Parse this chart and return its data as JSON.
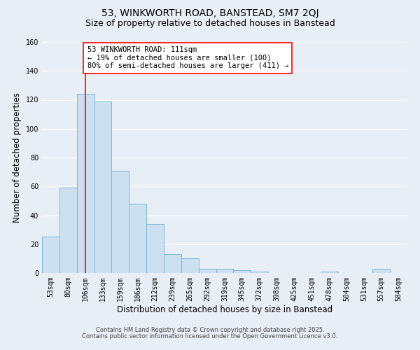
{
  "title": "53, WINKWORTH ROAD, BANSTEAD, SM7 2QJ",
  "subtitle": "Size of property relative to detached houses in Banstead",
  "xlabel": "Distribution of detached houses by size in Banstead",
  "ylabel": "Number of detached properties",
  "bar_labels": [
    "53sqm",
    "80sqm",
    "106sqm",
    "133sqm",
    "159sqm",
    "186sqm",
    "212sqm",
    "239sqm",
    "265sqm",
    "292sqm",
    "319sqm",
    "345sqm",
    "372sqm",
    "398sqm",
    "425sqm",
    "451sqm",
    "478sqm",
    "504sqm",
    "531sqm",
    "557sqm",
    "584sqm"
  ],
  "bar_heights": [
    25,
    59,
    124,
    119,
    71,
    48,
    34,
    13,
    10,
    3,
    3,
    2,
    1,
    0,
    0,
    0,
    1,
    0,
    0,
    3,
    0
  ],
  "bar_color": "#cce0f0",
  "bar_edge_color": "#7ab8d9",
  "ylim": [
    0,
    160
  ],
  "yticks": [
    0,
    20,
    40,
    60,
    80,
    100,
    120,
    140,
    160
  ],
  "red_line_x": 2.0,
  "annotation_line1": "53 WINKWORTH ROAD: 111sqm",
  "annotation_line2": "← 19% of detached houses are smaller (100)",
  "annotation_line3": "80% of semi-detached houses are larger (411) →",
  "footer_line1": "Contains HM Land Registry data © Crown copyright and database right 2025.",
  "footer_line2": "Contains public sector information licensed under the Open Government Licence v3.0.",
  "background_color": "#e8eef5",
  "grid_color": "#ffffff",
  "title_fontsize": 10,
  "subtitle_fontsize": 9,
  "xlabel_fontsize": 8.5,
  "ylabel_fontsize": 8.5,
  "tick_fontsize": 7,
  "annotation_fontsize": 7.5,
  "footer_fontsize": 6
}
